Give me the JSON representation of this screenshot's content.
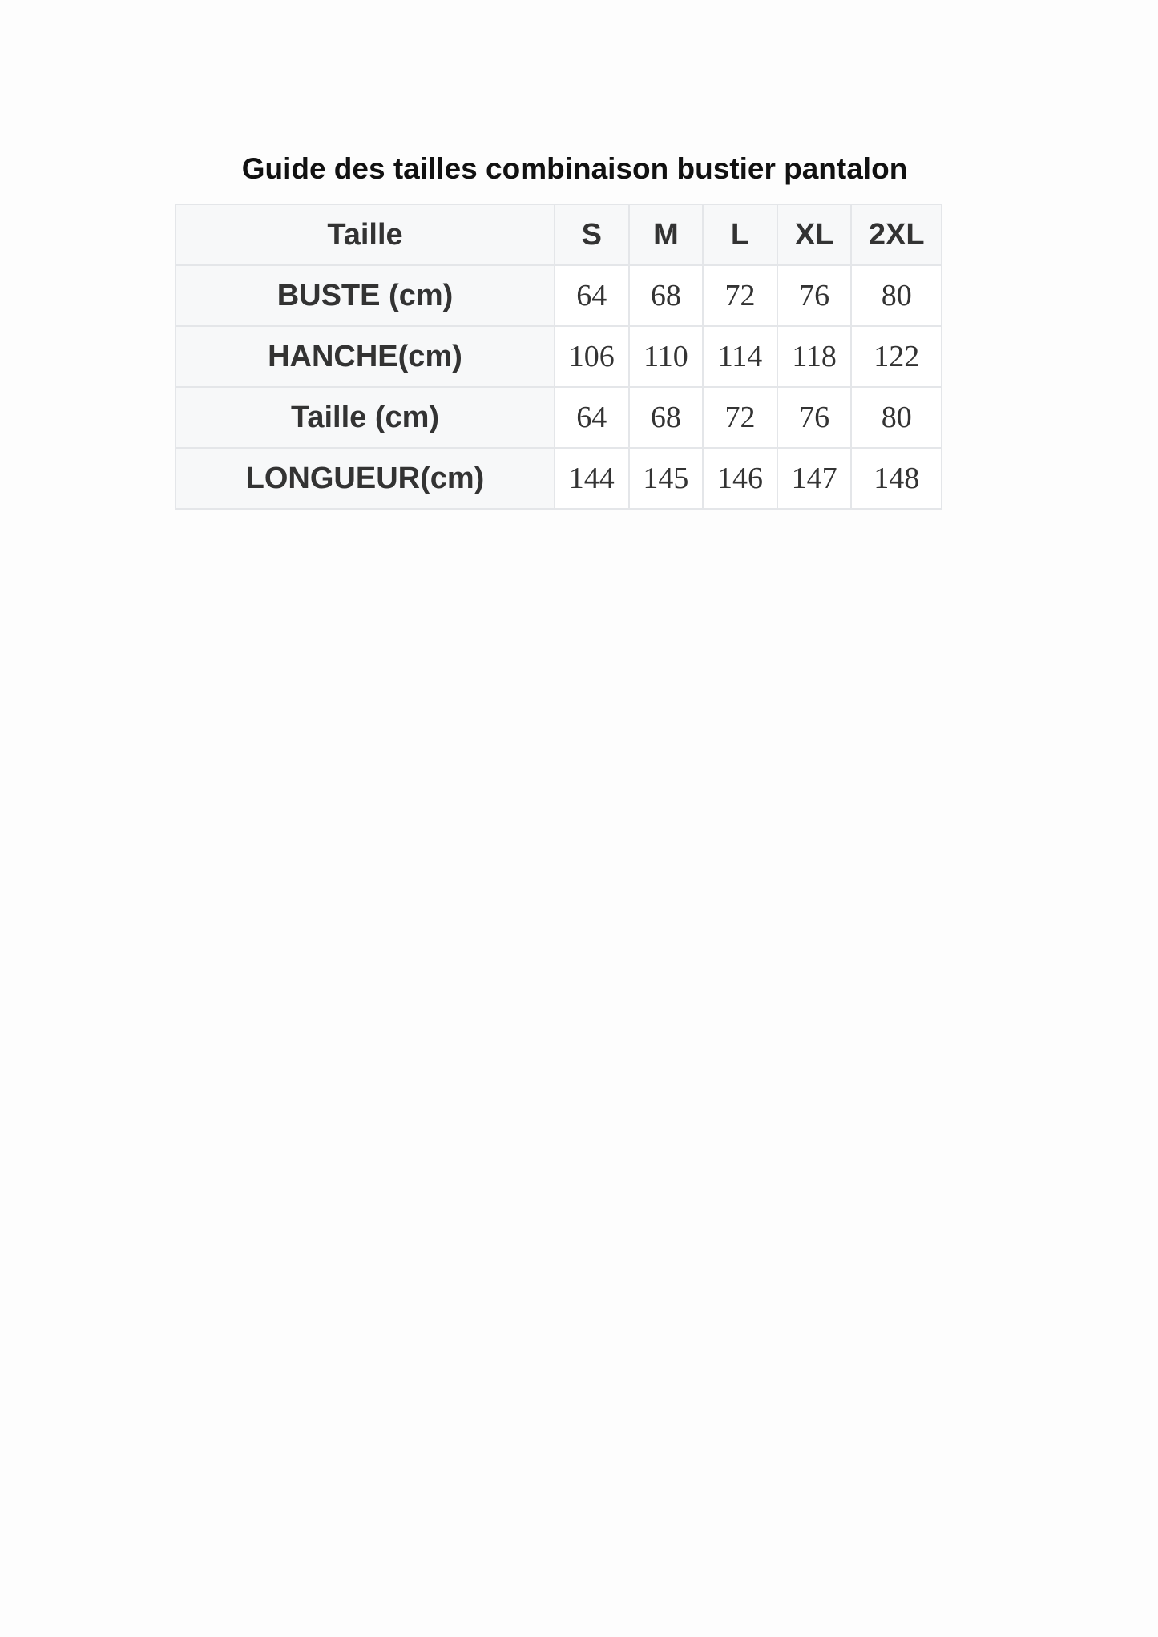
{
  "title": "Guide des tailles combinaison bustier pantalon",
  "header": [
    "Taille",
    "S",
    "M",
    "L",
    "XL",
    "2XL"
  ],
  "rows": [
    {
      "label": "BUSTE (cm)",
      "values": [
        "64",
        "68",
        "72",
        "76",
        "80"
      ]
    },
    {
      "label": "HANCHE(cm)",
      "values": [
        "106",
        "110",
        "114",
        "118",
        "122"
      ]
    },
    {
      "label": "Taille (cm)",
      "values": [
        "64",
        "68",
        "72",
        "76",
        "80"
      ]
    },
    {
      "label": "LONGUEUR(cm)",
      "values": [
        "144",
        "145",
        "146",
        "147",
        "148"
      ]
    }
  ]
}
